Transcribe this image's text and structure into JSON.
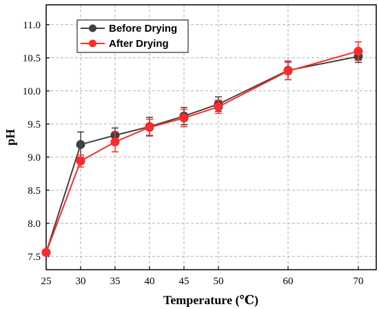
{
  "chart_data": {
    "type": "line",
    "title": "",
    "xlabel": "Temperature (℃)",
    "ylabel": "pH",
    "x_ticks": [
      25,
      30,
      35,
      40,
      45,
      50,
      60,
      70
    ],
    "x_tick_labels": [
      "25",
      "30",
      "35",
      "40",
      "45",
      "50",
      "60",
      "70"
    ],
    "y_ticks": [
      7.5,
      8.0,
      8.5,
      9.0,
      9.5,
      10.0,
      10.5,
      11.0
    ],
    "y_tick_labels": [
      "7.5",
      "8.0",
      "8.5",
      "9.0",
      "9.5",
      "10.0",
      "10.5",
      "11.0"
    ],
    "ylim": [
      7.3,
      11.3
    ],
    "grid": true,
    "legend_position": "top-left",
    "series": [
      {
        "name": "Before Drying",
        "color": "#404040",
        "x": [
          25,
          30,
          35,
          40,
          45,
          50,
          60,
          70
        ],
        "y": [
          7.56,
          9.19,
          9.33,
          9.46,
          9.62,
          9.8,
          10.31,
          10.52
        ],
        "error": [
          0.02,
          0.19,
          0.11,
          0.14,
          0.13,
          0.11,
          0.14,
          0.09
        ]
      },
      {
        "name": "After Drying",
        "color": "#ff2a2a",
        "x": [
          25,
          30,
          35,
          40,
          45,
          50,
          60,
          70
        ],
        "y": [
          7.56,
          8.94,
          9.23,
          9.45,
          9.59,
          9.76,
          10.3,
          10.6
        ],
        "error": [
          0.02,
          0.09,
          0.15,
          0.12,
          0.13,
          0.1,
          0.13,
          0.14
        ]
      }
    ]
  }
}
